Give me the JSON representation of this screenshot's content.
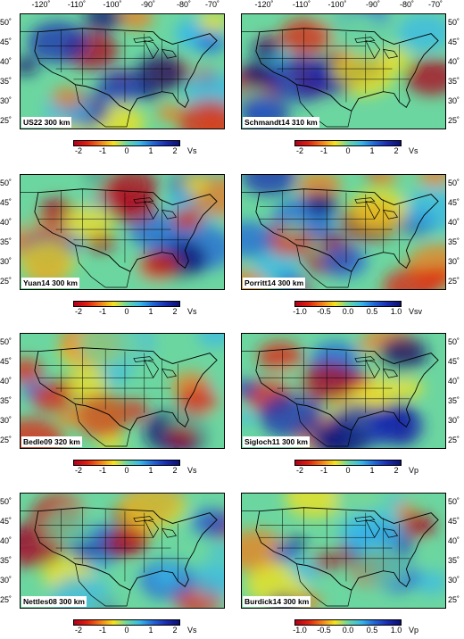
{
  "lon_ticks": [
    "-120˚",
    "-110˚",
    "-100˚",
    "-90˚",
    "-80˚",
    "-70˚"
  ],
  "lat_ticks": [
    "50˚",
    "45˚",
    "40˚",
    "35˚",
    "30˚",
    "25˚"
  ],
  "panels": [
    {
      "label": "US22 300 km",
      "unit": "Vs",
      "scale_ticks": [
        "-2",
        "-1",
        "0",
        "1",
        "2"
      ]
    },
    {
      "label": "Schmandt14 310 km",
      "unit": "Vs",
      "scale_ticks": [
        "-2",
        "-1",
        "0",
        "1",
        "2"
      ]
    },
    {
      "label": "Yuan14 300 km",
      "unit": "Vs",
      "scale_ticks": [
        "-2",
        "-1",
        "0",
        "1",
        "2"
      ]
    },
    {
      "label": "Porritt14 300 km",
      "unit": "Vsv",
      "scale_ticks": [
        "-1.0",
        "-0.5",
        "0.0",
        "0.5",
        "1.0"
      ]
    },
    {
      "label": "Bedle09 320 km",
      "unit": "Vs",
      "scale_ticks": [
        "-2",
        "-1",
        "0",
        "1",
        "2"
      ]
    },
    {
      "label": "Sigloch11 300 km",
      "unit": "Vp",
      "scale_ticks": [
        "-2",
        "-1",
        "0",
        "1",
        "2"
      ]
    },
    {
      "label": "Nettles08 300 km",
      "unit": "Vs",
      "scale_ticks": [
        "-2",
        "-1",
        "0",
        "1",
        "2"
      ]
    },
    {
      "label": "Burdick14 300 km",
      "unit": "Vp",
      "scale_ticks": [
        "-1.0",
        "-0.5",
        "0.0",
        "0.5",
        "1.0"
      ]
    }
  ],
  "colormap": [
    "#b0001a",
    "#e02010",
    "#f27d1a",
    "#f5e21e",
    "#6cd6a0",
    "#38b8e8",
    "#2266d8",
    "#1a2bb0",
    "#0a0f70"
  ]
}
